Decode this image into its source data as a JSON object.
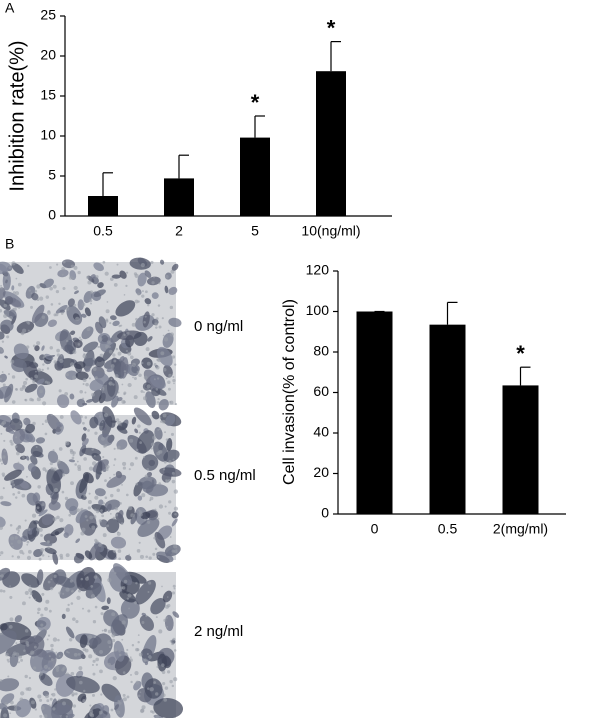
{
  "panel_labels": [
    "A",
    "B"
  ],
  "chart_data": [
    {
      "type": "bar",
      "y_label": "Inhibition rate(%)",
      "categories": [
        "0.5",
        "2",
        "5",
        "10(ng/ml)"
      ],
      "values": [
        2.5,
        4.7,
        9.8,
        18.1
      ],
      "errors": [
        2.9,
        2.9,
        2.7,
        3.7
      ],
      "significance": [
        null,
        null,
        "*",
        "*"
      ],
      "color": "#000000",
      "ylim": [
        0,
        25
      ],
      "yticks": [
        0,
        5,
        10,
        15,
        20,
        25
      ]
    },
    {
      "type": "bar",
      "y_label": "Cell invasion(% of control)",
      "categories": [
        "0",
        "0.5",
        "2(mg/ml)"
      ],
      "values": [
        100,
        93.5,
        63.5
      ],
      "errors": [
        0,
        11,
        9
      ],
      "significance": [
        null,
        null,
        "*"
      ],
      "color": "#000000",
      "ylim": [
        0,
        120
      ],
      "yticks": [
        0,
        20,
        40,
        60,
        80,
        100,
        120
      ]
    }
  ],
  "micrographs": {
    "labels": [
      "0 ng/ml",
      "0.5 ng/ml",
      "2 ng/ml"
    ]
  }
}
